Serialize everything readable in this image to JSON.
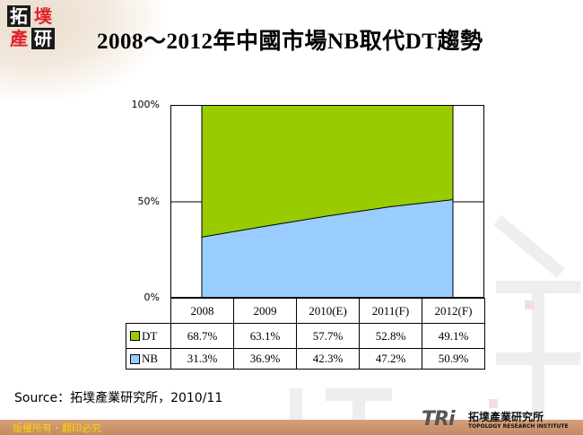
{
  "header": {
    "logo_chars": [
      "拓",
      "墣",
      "產",
      "研"
    ],
    "title": "2008～2012年中國市場NB取代DT趨勢"
  },
  "chart_data": {
    "type": "area",
    "stacked": true,
    "percent": true,
    "title": "2008～2012年中國市場NB取代DT趨勢",
    "categories": [
      "2008",
      "2009",
      "2010(E)",
      "2011(F)",
      "2012(F)"
    ],
    "series": [
      {
        "name": "DT",
        "color": "#99cc00",
        "values": [
          68.7,
          63.1,
          57.7,
          52.8,
          49.1
        ],
        "labels": [
          "68.7%",
          "63.1%",
          "57.7%",
          "52.8%",
          "49.1%"
        ]
      },
      {
        "name": "NB",
        "color": "#99ccff",
        "values": [
          31.3,
          36.9,
          42.3,
          47.2,
          50.9
        ],
        "labels": [
          "31.3%",
          "36.9%",
          "42.3%",
          "47.2%",
          "50.9%"
        ]
      }
    ],
    "yticks": [
      "100%",
      "50%",
      "0%"
    ],
    "ylim": [
      0,
      100
    ],
    "xlabel": "",
    "ylabel": "",
    "grid": true,
    "legend_position": "data-table"
  },
  "source": "Source：拓墣產業研究所，2010/11",
  "footer": {
    "copyright": "版權所有・翻印必究",
    "brand_mark": "TRi",
    "brand_cn": "拓墣產業研究所",
    "brand_en": "TOPOLOGY RESEARCH INSTITUTE"
  }
}
